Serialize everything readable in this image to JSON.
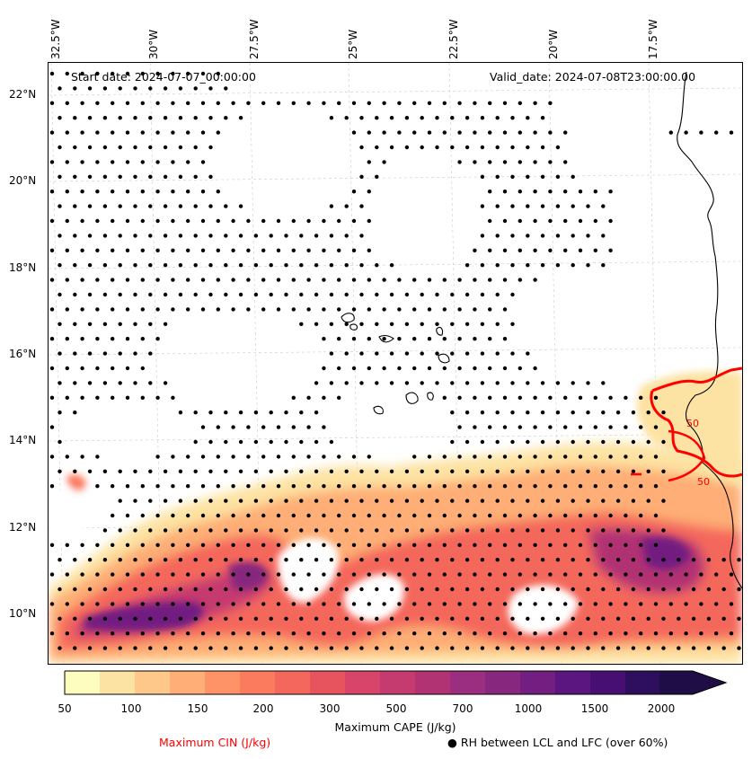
{
  "map": {
    "start_date": "Start date: 2024-07-07_00:00:00",
    "valid_date": "Valid_date: 2024-07-08T23:00:00.00",
    "longitude_labels": [
      "32.5°W",
      "30°W",
      "27.5°W",
      "25°W",
      "22.5°W",
      "20°W",
      "17.5°W"
    ],
    "latitude_labels": [
      "22°N",
      "20°N",
      "18°N",
      "16°N",
      "14°N",
      "12°N",
      "10°N"
    ],
    "cin_contour_labels": [
      "50",
      "50"
    ],
    "colors": {
      "cin_contour": "#ff0000",
      "coastline": "#000000",
      "stipple": "#000000",
      "grid": "#cccccc"
    }
  },
  "colorbar": {
    "title": "Maximum CAPE (J/kg)",
    "tick_labels": [
      "50",
      "100",
      "150",
      "200",
      "300",
      "500",
      "700",
      "1000",
      "1500",
      "2000"
    ],
    "colors": [
      "#fcfdbf",
      "#fde3a3",
      "#fec88a",
      "#feae76",
      "#fd9367",
      "#fb7b5e",
      "#f4675c",
      "#e8545e",
      "#d8456a",
      "#c53b6f",
      "#b13373",
      "#9c2e7f",
      "#87277e",
      "#721f81",
      "#5c167f",
      "#470f72",
      "#2e0f5e",
      "#1e0e45"
    ]
  },
  "legend": {
    "cin_label": "Maximum CIN (J/kg)",
    "rh_marker": "●",
    "rh_label": "RH between LCL and LFC (over 60%)"
  }
}
